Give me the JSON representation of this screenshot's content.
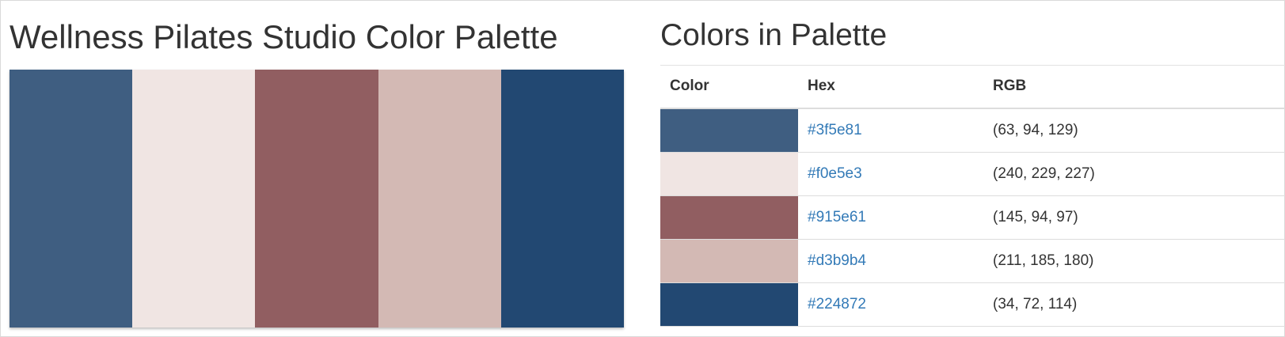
{
  "palette": {
    "title": "Wellness Pilates Studio Color Palette",
    "colors": [
      "#3f5e81",
      "#f0e5e3",
      "#915e61",
      "#d3b9b4",
      "#224872"
    ]
  },
  "table": {
    "heading": "Colors in Palette",
    "columns": [
      "Color",
      "Hex",
      "RGB"
    ],
    "rows": [
      {
        "hex": "#3f5e81",
        "rgb": "(63, 94, 129)"
      },
      {
        "hex": "#f0e5e3",
        "rgb": "(240, 229, 227)"
      },
      {
        "hex": "#915e61",
        "rgb": "(145, 94, 97)"
      },
      {
        "hex": "#d3b9b4",
        "rgb": "(211, 185, 180)"
      },
      {
        "hex": "#224872",
        "rgb": "(34, 72, 114)"
      }
    ]
  }
}
